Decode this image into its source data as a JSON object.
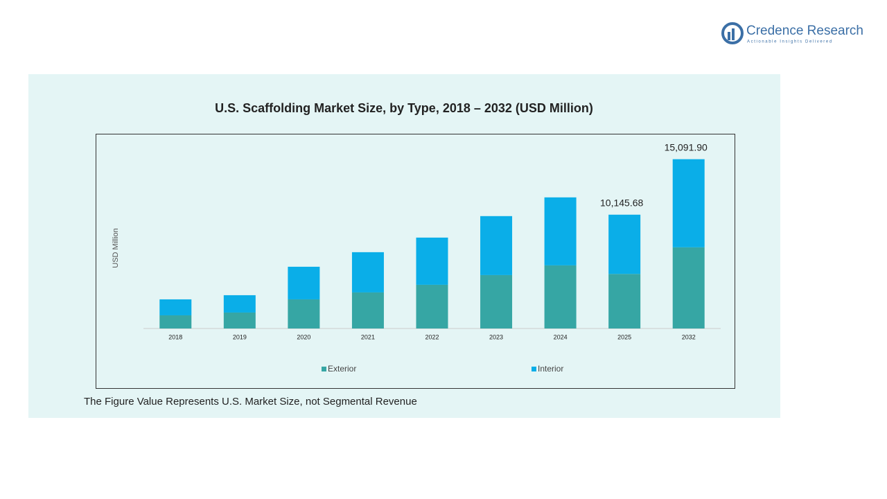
{
  "logo": {
    "name": "Credence Research",
    "tagline": "Actionable Insights Delivered"
  },
  "chart_data": {
    "type": "stacked-bar",
    "title": "U.S. Scaffolding Market Size, by Type, 2018 – 2032 (USD Million)",
    "y_label": "USD Million",
    "categories": [
      "2018",
      "2019",
      "2020",
      "2021",
      "2022",
      "2023",
      "2024",
      "2025",
      "2032"
    ],
    "series": [
      {
        "name": "Exterior",
        "color": "#36a6a4",
        "values": [
          1175,
          1423,
          2598,
          3216,
          3897,
          4762,
          5628,
          4862.26,
          7236.77
        ]
      },
      {
        "name": "Interior",
        "color": "#0aaee8",
        "values": [
          1423,
          1546,
          2907,
          3587,
          4206,
          5257,
          6061,
          5283.42,
          7855.13
        ]
      }
    ],
    "total_labels": [
      null,
      null,
      null,
      null,
      null,
      null,
      null,
      "10,145.68",
      "15,091.90"
    ],
    "ylim": [
      0,
      16000
    ],
    "note": "The Figure Value Represents U.S. Market Size, not Segmental Revenue"
  }
}
